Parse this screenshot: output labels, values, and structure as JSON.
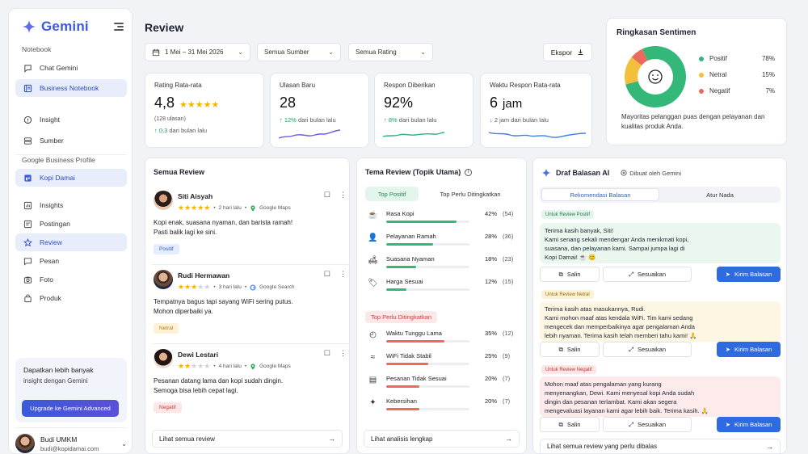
{
  "sidebar": {
    "brand": "Gemini",
    "section_notebook": "Notebook",
    "notebook_items": [
      {
        "label": "Chat Gemini",
        "icon": "chat-icon"
      },
      {
        "label": "Business Notebook",
        "icon": "notebook-icon",
        "active": true
      },
      {
        "label": "Insight",
        "icon": "insight-icon"
      },
      {
        "label": "Sumber",
        "icon": "source-icon"
      }
    ],
    "section_gbp": "Google Business Profile",
    "gbp_items": [
      {
        "label": "Kopi Damai",
        "icon": "store-icon",
        "active": true
      },
      {
        "label": "Insights",
        "icon": "chart-icon"
      },
      {
        "label": "Postingan",
        "icon": "post-icon"
      },
      {
        "label": "Review",
        "icon": "star-icon",
        "active": true
      },
      {
        "label": "Pesan",
        "icon": "message-icon"
      },
      {
        "label": "Foto",
        "icon": "camera-icon"
      },
      {
        "label": "Produk",
        "icon": "bag-icon"
      }
    ],
    "upgrade": {
      "title": "Dapatkan lebih banyak",
      "subtitle": "insight dengan Gemini",
      "button": "Upgrade ke Gemini Advanced"
    },
    "user": {
      "name": "Budi UMKM",
      "email": "budi@kopidamai.com"
    }
  },
  "header": {
    "title": "Review",
    "date_range": "1 Mei – 31 Mei 2026",
    "source_filter": "Semua Sumber",
    "rating_filter": "Semua Rating",
    "export_label": "Ekspor"
  },
  "stats": {
    "rating": {
      "label": "Rating Rata-rata",
      "value": "4,8",
      "stars": 4.8,
      "sub": "(128 ulasan)",
      "trend_value": "0,3",
      "trend_text": "dari bulan lalu"
    },
    "new_reviews": {
      "label": "Ulasan Baru",
      "value": "28",
      "trend_value": "12%",
      "trend_text": "dari bulan lalu"
    },
    "responses": {
      "label": "Respon Diberikan",
      "value": "92%",
      "trend_value": "8%",
      "trend_text": "dari bulan lalu"
    },
    "response_time": {
      "label": "Waktu Respon Rata-rata",
      "value": "6",
      "unit": "jam",
      "trend_value": "2 jam",
      "trend_text": "dari bulan lalu"
    }
  },
  "sentiment": {
    "title": "Ringkasan Sentimen",
    "items": [
      {
        "label": "Positif",
        "value": "78%",
        "pct": 78,
        "color": "#34b87a"
      },
      {
        "label": "Netral",
        "value": "15%",
        "pct": 15,
        "color": "#f4bf3a"
      },
      {
        "label": "Negatif",
        "value": "7%",
        "pct": 7,
        "color": "#ec6a5c"
      }
    ],
    "description": "Mayoritas pelanggan puas dengan pelayanan dan kualitas produk Anda."
  },
  "reviews": {
    "title": "Semua Review",
    "items": [
      {
        "name": "Siti Aisyah",
        "rating": 5,
        "time": "2 hari lalu",
        "source": "Google Maps",
        "text_1": "Kopi enak, suasana nyaman, dan barista ramah!",
        "text_2": "Pasti balik lagi ke sini.",
        "tag": "Positif"
      },
      {
        "name": "Rudi Hermawan",
        "rating": 3,
        "time": "3 hari lalu",
        "source": "Google Search",
        "text_1": "Tempatnya bagus tapi sayang WiFi sering putus.",
        "text_2": "Mohon diperbaiki ya.",
        "tag": "Netral"
      },
      {
        "name": "Dewi Lestari",
        "rating": 2,
        "time": "4 hari lalu",
        "source": "Google Maps",
        "text_1": "Pesanan datang lama dan kopi sudah dingin.",
        "text_2": "Semoga bisa lebih cepat lagi.",
        "tag": "Negatif"
      }
    ],
    "see_all": "Lihat semua review"
  },
  "topics": {
    "title": "Tema Review (Topik Utama)",
    "tab_positive": "Top Positif",
    "tab_improve": "Top Perlu Ditingkatkan",
    "positive": [
      {
        "label": "Rasa Kopi",
        "pct": "42%",
        "value": 42,
        "count": "(54)",
        "icon": "coffee-icon"
      },
      {
        "label": "Pelayanan Ramah",
        "pct": "28%",
        "value": 28,
        "count": "(36)",
        "icon": "person-icon"
      },
      {
        "label": "Suasana Nyaman",
        "pct": "18%",
        "value": 18,
        "count": "(23)",
        "icon": "sofa-icon"
      },
      {
        "label": "Harga Sesuai",
        "pct": "12%",
        "value": 12,
        "count": "(15)",
        "icon": "tag-icon"
      }
    ],
    "improve_label": "Top Perlu Ditingkatkan",
    "negative": [
      {
        "label": "Waktu Tunggu Lama",
        "pct": "35%",
        "value": 35,
        "count": "(12)",
        "icon": "clock-icon"
      },
      {
        "label": "WiFi Tidak Stabil",
        "pct": "25%",
        "value": 25,
        "count": "(9)",
        "icon": "wifi-icon"
      },
      {
        "label": "Pesanan Tidak Sesuai",
        "pct": "20%",
        "value": 20,
        "count": "(7)",
        "icon": "receipt-icon"
      },
      {
        "label": "Kebersihan",
        "pct": "20%",
        "value": 20,
        "count": "(7)",
        "icon": "sparkle-icon"
      }
    ],
    "see_analysis": "Lihat analisis lengkap"
  },
  "drafts": {
    "title": "Draf Balasan AI",
    "generated_by": "Dibuat oleh Gemini",
    "tab_recommend": "Rekomendasi Balasan",
    "tab_tone": "Atur Nada",
    "copy_label": "Salin",
    "adjust_label": "Sesuaikan",
    "send_label": "Kirim Balasan",
    "items": [
      {
        "label": "Untuk Review Positif",
        "line_1": "Terima kasih banyak, Siti!",
        "line_2": "Kami senang sekali mendengar Anda menikmati kopi,",
        "line_3": "suasana, dan pelayanan kami. Sampai jumpa lagi di",
        "line_4": "Kopi Damai! ☕ 😊"
      },
      {
        "label": "Untuk Review Netral",
        "line_1": "Terima kasih atas masukannya, Rudi.",
        "line_2": "Kami mohon maaf atas kendala WiFi. Tim kami sedang",
        "line_3": "mengecek dan memperbaikinya agar pengalaman Anda",
        "line_4": "lebih nyaman. Terima kasih telah memberi tahu kami! 🙏"
      },
      {
        "label": "Untuk Review Negatif",
        "line_1": "Mohon maaf atas pengalaman yang kurang",
        "line_2": "menyenangkan, Dewi. Kami menyesal kopi Anda sudah",
        "line_3": "dingin dan pesanan terlambat. Kami akan segera",
        "line_4": "mengevaluasi layanan kami agar lebih baik. Terima kasih. 🙏"
      }
    ],
    "see_pending": "Lihat semua review yang perlu dibalas"
  }
}
